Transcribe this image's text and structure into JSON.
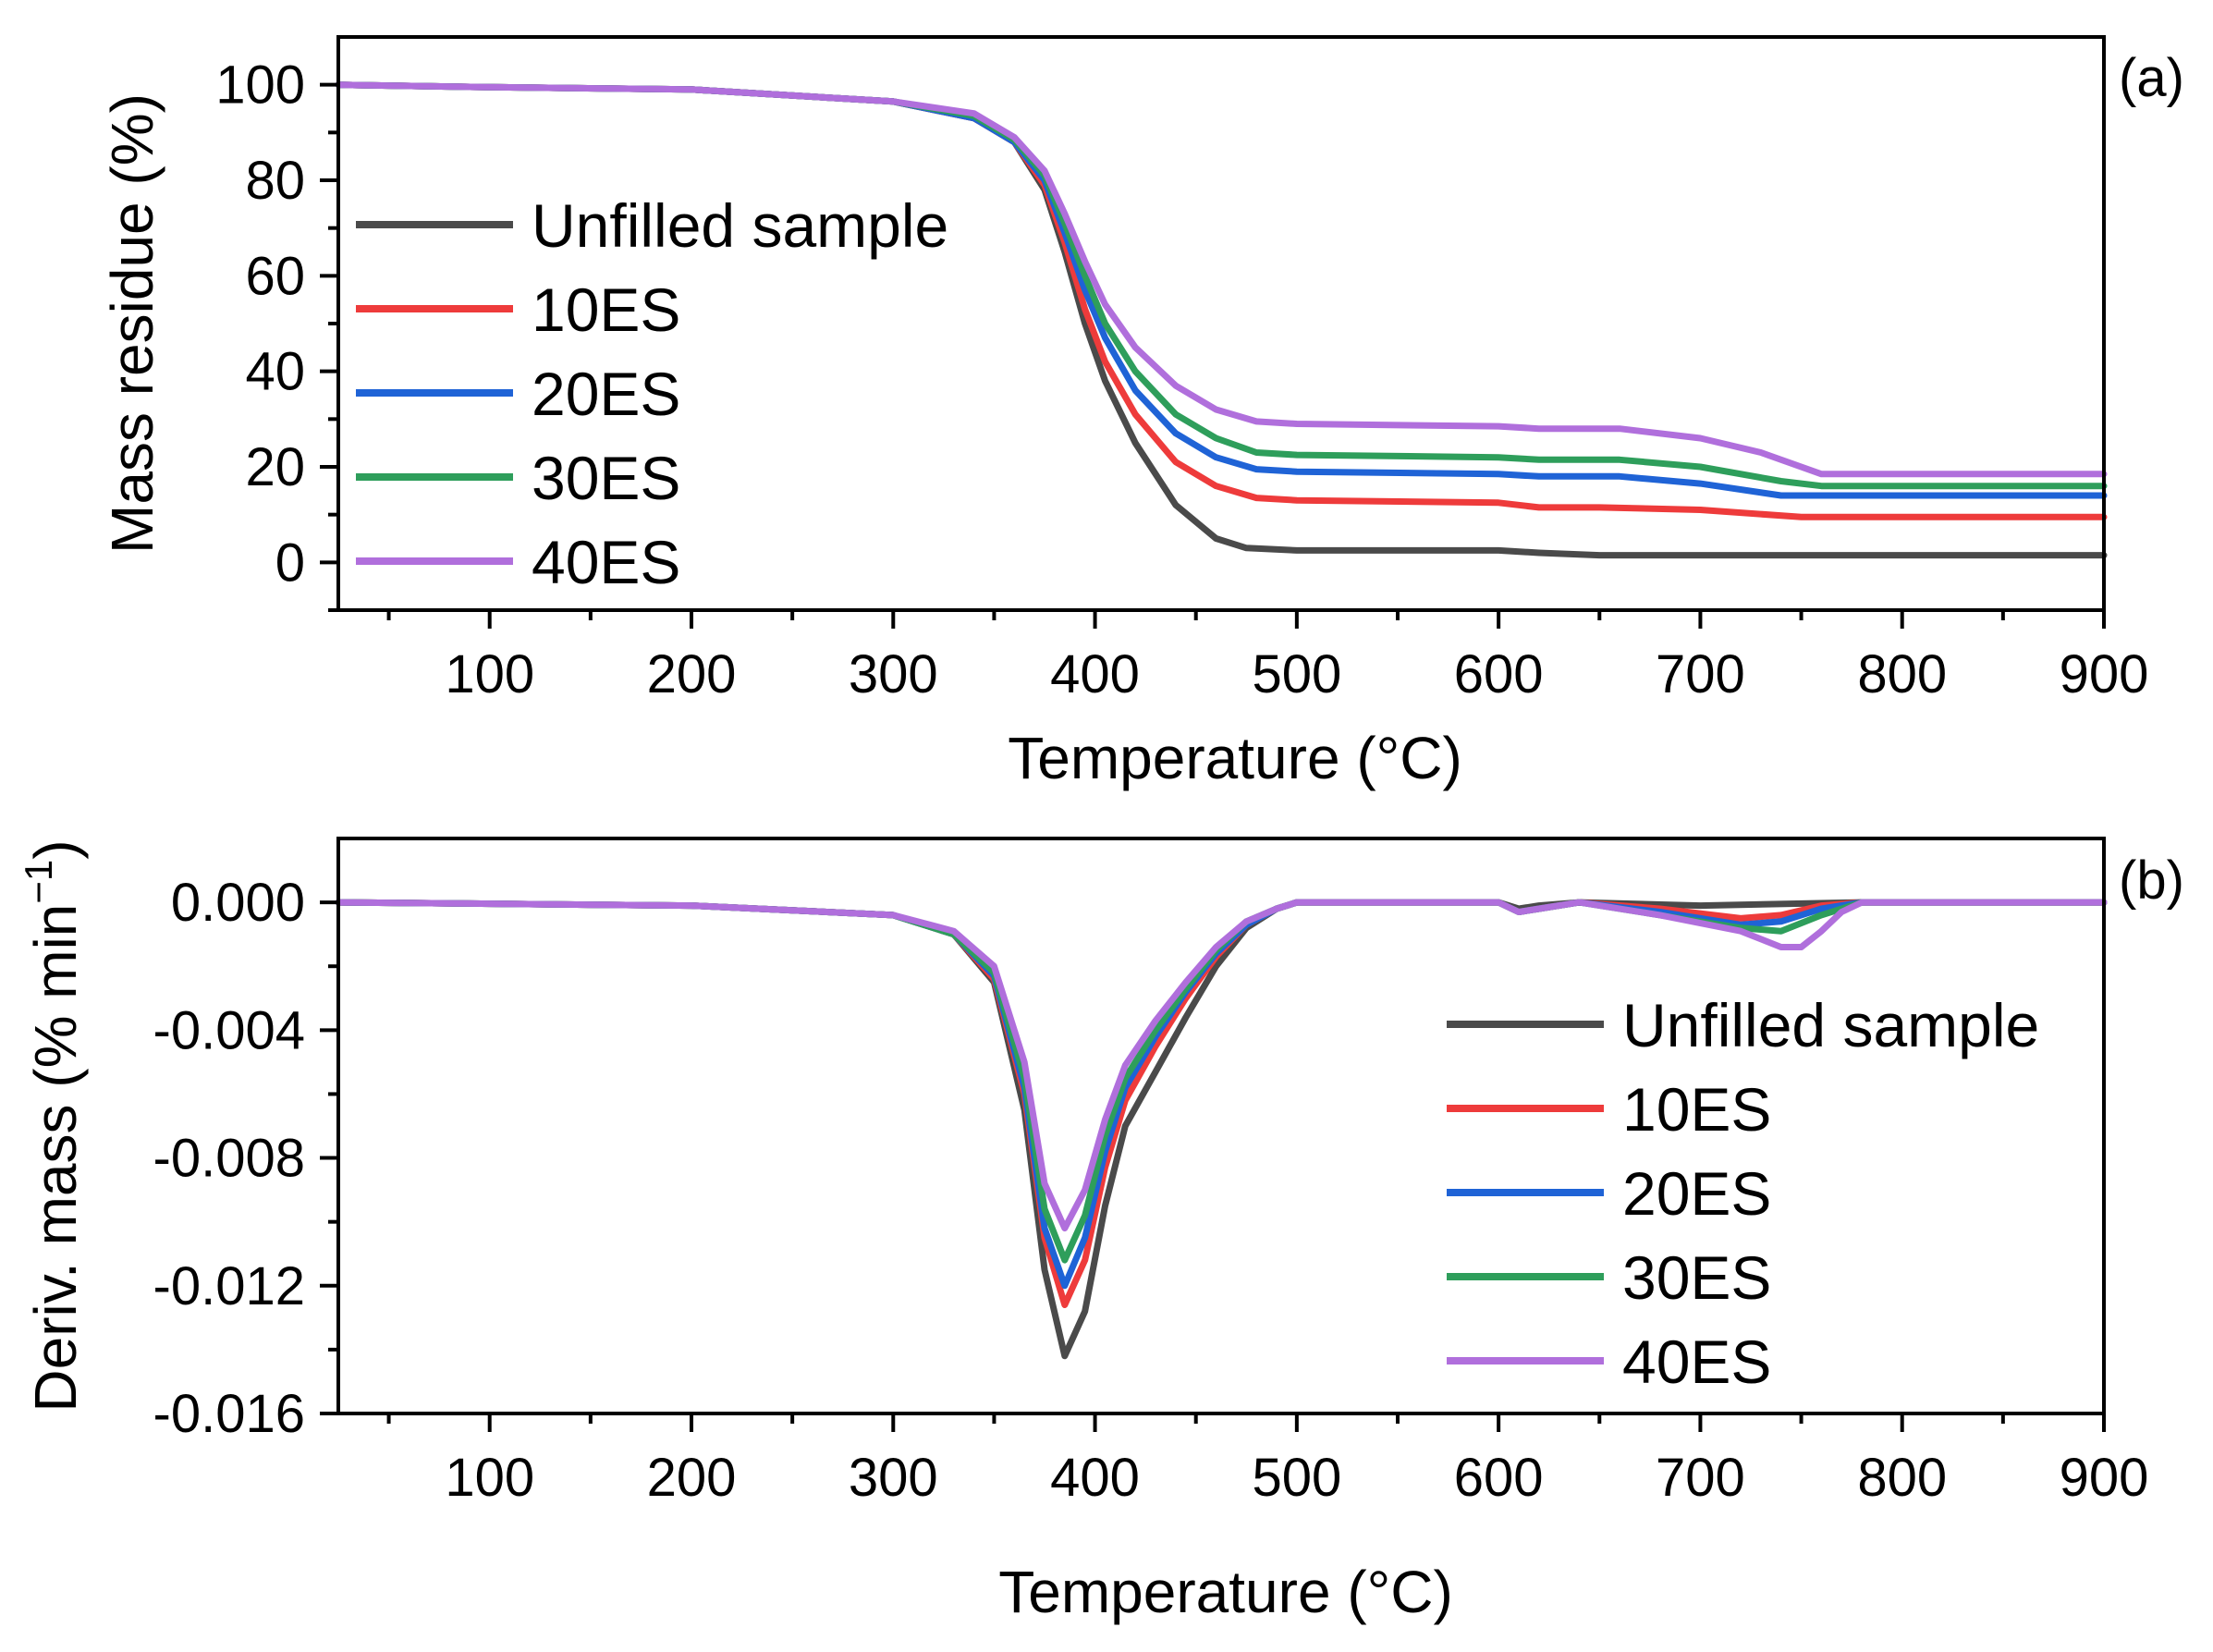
{
  "chart_data": [
    {
      "type": "line",
      "panel_label": "(a)",
      "xlabel": "Temperature (°C)",
      "ylabel": "Mass residue (%)",
      "xlim": [
        25,
        900
      ],
      "ylim": [
        -10,
        110
      ],
      "xticks": [
        100,
        200,
        300,
        400,
        500,
        600,
        700,
        800,
        900
      ],
      "xtick_labels": [
        "100",
        "200",
        "300",
        "400",
        "500",
        "600",
        "700",
        "800",
        "900"
      ],
      "yticks": [
        0,
        20,
        40,
        60,
        80,
        100
      ],
      "ytick_labels": [
        "0",
        "20",
        "40",
        "60",
        "80",
        "100"
      ],
      "legend_position": "upper-left",
      "series": [
        {
          "name": "Unfilled sample",
          "color": "#4a4a4a",
          "x": [
            25,
            100,
            200,
            300,
            340,
            360,
            375,
            385,
            395,
            405,
            420,
            440,
            460,
            475,
            500,
            600,
            620,
            650,
            700,
            800,
            900
          ],
          "y": [
            100,
            99.5,
            99,
            96.5,
            93,
            88,
            78,
            65,
            50,
            38,
            25,
            12,
            5,
            3,
            2.5,
            2.5,
            2,
            1.5,
            1.5,
            1.5,
            1.5
          ]
        },
        {
          "name": "10ES",
          "color": "#ee3b3b",
          "x": [
            25,
            100,
            200,
            300,
            340,
            360,
            375,
            385,
            395,
            405,
            420,
            440,
            460,
            480,
            500,
            600,
            620,
            650,
            700,
            750,
            800,
            900
          ],
          "y": [
            100,
            99.5,
            99,
            96.5,
            93,
            88,
            79,
            67,
            53,
            42,
            31,
            21,
            16,
            13.5,
            13,
            12.5,
            11.5,
            11.5,
            11,
            9.5,
            9.5,
            9.5
          ]
        },
        {
          "name": "20ES",
          "color": "#1f63d6",
          "x": [
            25,
            100,
            200,
            300,
            340,
            360,
            375,
            385,
            395,
            405,
            420,
            440,
            460,
            480,
            500,
            600,
            620,
            660,
            700,
            740,
            760,
            800,
            900
          ],
          "y": [
            100,
            99.5,
            99,
            96.5,
            93,
            88,
            80,
            69,
            57,
            47,
            36,
            27,
            22,
            19.5,
            19,
            18.5,
            18,
            18,
            16.5,
            14,
            14,
            14,
            14
          ]
        },
        {
          "name": "30ES",
          "color": "#2e9e5b",
          "x": [
            25,
            100,
            200,
            300,
            340,
            360,
            375,
            385,
            395,
            405,
            420,
            440,
            460,
            480,
            500,
            600,
            620,
            660,
            700,
            740,
            760,
            800,
            900
          ],
          "y": [
            100,
            99.5,
            99,
            96.5,
            93.5,
            88.5,
            81,
            71,
            60,
            50,
            40,
            31,
            26,
            23,
            22.5,
            22,
            21.5,
            21.5,
            20,
            17,
            16,
            16,
            16
          ]
        },
        {
          "name": "40ES",
          "color": "#b06fdc",
          "x": [
            25,
            100,
            200,
            300,
            340,
            360,
            375,
            385,
            395,
            405,
            420,
            440,
            460,
            480,
            500,
            600,
            620,
            660,
            700,
            730,
            760,
            800,
            900
          ],
          "y": [
            100,
            99.5,
            99,
            96.5,
            94,
            89,
            82,
            73,
            63,
            54,
            45,
            37,
            32,
            29.5,
            29,
            28.5,
            28,
            28,
            26,
            23,
            18.5,
            18.5,
            18.5
          ]
        }
      ]
    },
    {
      "type": "line",
      "panel_label": "(b)",
      "xlabel": "Temperature (°C)",
      "ylabel": "Deriv. mass (% min",
      "ylabel_superscript": "−1",
      "ylabel_suffix": ")",
      "xlim": [
        25,
        900
      ],
      "ylim": [
        -0.016,
        0.002
      ],
      "xticks": [
        100,
        200,
        300,
        400,
        500,
        600,
        700,
        800,
        900
      ],
      "xtick_labels": [
        "100",
        "200",
        "300",
        "400",
        "500",
        "600",
        "700",
        "800",
        "900"
      ],
      "yticks": [
        0,
        -0.004,
        -0.008,
        -0.012,
        -0.016
      ],
      "ytick_labels": [
        "0.000",
        "-0.004",
        "-0.008",
        "-0.012",
        "-0.016"
      ],
      "legend_position": "lower-right",
      "series": [
        {
          "name": "Unfilled sample",
          "color": "#4a4a4a",
          "x": [
            25,
            200,
            300,
            330,
            350,
            365,
            375,
            385,
            395,
            405,
            415,
            430,
            445,
            460,
            475,
            490,
            500,
            600,
            610,
            620,
            640,
            700,
            780,
            900
          ],
          "y": [
            0,
            -0.0001,
            -0.0004,
            -0.001,
            -0.0025,
            -0.0065,
            -0.0115,
            -0.0142,
            -0.0128,
            -0.0095,
            -0.007,
            -0.0053,
            -0.0036,
            -0.002,
            -0.0008,
            -0.0002,
            0,
            0,
            -0.0002,
            -0.0001,
            0,
            -0.0001,
            0,
            0
          ]
        },
        {
          "name": "10ES",
          "color": "#ee3b3b",
          "x": [
            25,
            200,
            300,
            330,
            350,
            365,
            375,
            385,
            395,
            405,
            415,
            430,
            445,
            460,
            475,
            490,
            500,
            600,
            610,
            620,
            640,
            680,
            720,
            740,
            760,
            780,
            900
          ],
          "y": [
            0,
            -0.0001,
            -0.0004,
            -0.001,
            -0.0024,
            -0.006,
            -0.0105,
            -0.0126,
            -0.0112,
            -0.0083,
            -0.0062,
            -0.0045,
            -0.003,
            -0.0017,
            -0.0007,
            -0.0002,
            0,
            0,
            -0.0003,
            -0.0002,
            0,
            -0.0002,
            -0.0005,
            -0.0004,
            -0.0001,
            0,
            0
          ]
        },
        {
          "name": "20ES",
          "color": "#1f63d6",
          "x": [
            25,
            200,
            300,
            330,
            350,
            365,
            375,
            385,
            395,
            405,
            415,
            430,
            445,
            460,
            475,
            490,
            500,
            600,
            610,
            620,
            640,
            680,
            720,
            740,
            760,
            780,
            900
          ],
          "y": [
            0,
            -0.0001,
            -0.0004,
            -0.001,
            -0.0023,
            -0.0058,
            -0.0102,
            -0.012,
            -0.0105,
            -0.0078,
            -0.0058,
            -0.0042,
            -0.0028,
            -0.0016,
            -0.0007,
            -0.0002,
            0,
            0,
            -0.0003,
            -0.0002,
            0,
            -0.0003,
            -0.0007,
            -0.0006,
            -0.0002,
            0,
            0
          ]
        },
        {
          "name": "30ES",
          "color": "#2e9e5b",
          "x": [
            25,
            200,
            300,
            330,
            350,
            365,
            375,
            385,
            395,
            405,
            415,
            430,
            445,
            460,
            475,
            490,
            500,
            600,
            610,
            620,
            640,
            680,
            720,
            740,
            760,
            780,
            900
          ],
          "y": [
            0,
            -0.0001,
            -0.0004,
            -0.001,
            -0.0022,
            -0.0055,
            -0.0096,
            -0.0112,
            -0.0098,
            -0.0073,
            -0.0055,
            -0.004,
            -0.0027,
            -0.0015,
            -0.0006,
            -0.0002,
            0,
            0,
            -0.0003,
            -0.0002,
            0,
            -0.0004,
            -0.0008,
            -0.0009,
            -0.0004,
            0,
            0
          ]
        },
        {
          "name": "40ES",
          "color": "#b06fdc",
          "x": [
            25,
            200,
            300,
            330,
            350,
            365,
            375,
            385,
            395,
            405,
            415,
            430,
            445,
            460,
            475,
            490,
            500,
            600,
            610,
            620,
            640,
            680,
            720,
            740,
            750,
            760,
            770,
            780,
            900
          ],
          "y": [
            0,
            -0.0001,
            -0.0004,
            -0.0009,
            -0.002,
            -0.005,
            -0.0088,
            -0.0102,
            -0.009,
            -0.0068,
            -0.0051,
            -0.0037,
            -0.0025,
            -0.0014,
            -0.0006,
            -0.0002,
            0,
            0,
            -0.0003,
            -0.0002,
            0,
            -0.0004,
            -0.0009,
            -0.0014,
            -0.0014,
            -0.0009,
            -0.0003,
            0,
            0
          ]
        }
      ]
    }
  ]
}
